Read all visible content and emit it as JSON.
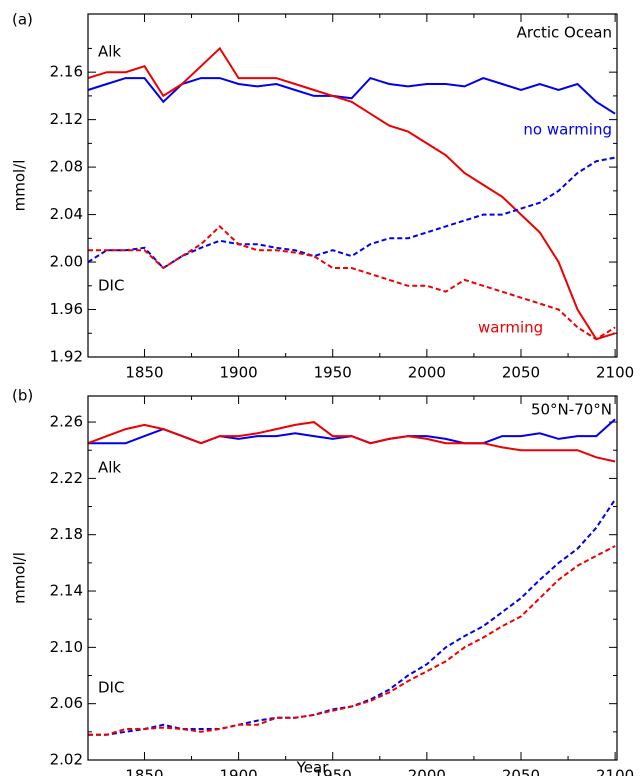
{
  "chart_data": [
    {
      "type": "line",
      "label": "(a)",
      "title": "Arctic Ocean",
      "ylabel": "mmol/l",
      "x": [
        1820,
        1830,
        1840,
        1850,
        1860,
        1870,
        1880,
        1890,
        1900,
        1910,
        1920,
        1930,
        1940,
        1950,
        1960,
        1970,
        1980,
        1990,
        2000,
        2010,
        2020,
        2030,
        2040,
        2050,
        2060,
        2070,
        2080,
        2090,
        2100
      ],
      "xlim": [
        1820,
        2101
      ],
      "ylim": [
        1.92,
        2.209
      ],
      "xticks": [
        1850,
        1900,
        1950,
        2000,
        2050,
        2100
      ],
      "yticks": [
        1.92,
        1.96,
        {
          "value": 2,
          "label": "2.00"
        },
        2.04,
        2.08,
        2.12,
        2.16
      ],
      "series": [
        {
          "color": "#0000ee",
          "dash": false,
          "values": [
            2.145,
            2.15,
            2.155,
            2.155,
            2.135,
            2.15,
            2.155,
            2.155,
            2.15,
            2.148,
            2.15,
            2.145,
            2.14,
            2.14,
            2.138,
            2.155,
            2.15,
            2.148,
            2.15,
            2.15,
            2.148,
            2.155,
            2.15,
            2.145,
            2.15,
            2.145,
            2.15,
            2.135,
            2.125
          ]
        },
        {
          "color": "#ee0000",
          "dash": false,
          "values": [
            2.155,
            2.16,
            2.16,
            2.165,
            2.14,
            2.15,
            2.165,
            2.18,
            2.155,
            2.155,
            2.155,
            2.15,
            2.145,
            2.14,
            2.135,
            2.125,
            2.115,
            2.11,
            2.1,
            2.09,
            2.075,
            2.065,
            2.055,
            2.04,
            2.025,
            2.0,
            1.96,
            1.935,
            1.94
          ]
        },
        {
          "color": "#0000ee",
          "dash": true,
          "values": [
            2.0,
            2.01,
            2.01,
            2.012,
            1.995,
            2.005,
            2.012,
            2.018,
            2.015,
            2.015,
            2.012,
            2.01,
            2.005,
            2.01,
            2.005,
            2.015,
            2.02,
            2.02,
            2.025,
            2.03,
            2.035,
            2.04,
            2.04,
            2.045,
            2.05,
            2.06,
            2.075,
            2.085,
            2.088
          ]
        },
        {
          "color": "#ee0000",
          "dash": true,
          "values": [
            2.01,
            2.01,
            2.01,
            2.01,
            1.995,
            2.005,
            2.015,
            2.03,
            2.015,
            2.01,
            2.01,
            2.008,
            2.005,
            1.995,
            1.995,
            1.99,
            1.985,
            1.98,
            1.98,
            1.975,
            1.985,
            1.98,
            1.975,
            1.97,
            1.965,
            1.96,
            1.945,
            1.935,
            1.945
          ]
        }
      ],
      "annotations": [
        {
          "text": "Alk",
          "color": "#000000"
        },
        {
          "text": "DIC",
          "color": "#000000"
        },
        {
          "text": "no warming",
          "color": "#0000ee"
        },
        {
          "text": "warming",
          "color": "#ee0000"
        }
      ]
    },
    {
      "type": "line",
      "label": "(b)",
      "title": "50°N-70°N",
      "ylabel": "mmol/l",
      "xlabel": "Year",
      "x": [
        1820,
        1830,
        1840,
        1850,
        1860,
        1870,
        1880,
        1890,
        1900,
        1910,
        1920,
        1930,
        1940,
        1950,
        1960,
        1970,
        1980,
        1990,
        2000,
        2010,
        2020,
        2030,
        2040,
        2050,
        2060,
        2070,
        2080,
        2090,
        2100
      ],
      "xlim": [
        1820,
        2101
      ],
      "ylim": [
        2.02,
        2.2785
      ],
      "xticks": [
        1850,
        1900,
        1950,
        2000,
        2050,
        2100
      ],
      "yticks": [
        2.02,
        2.06,
        {
          "value": 2.1,
          "label": "2.10"
        },
        2.14,
        2.18,
        2.22,
        2.26
      ],
      "series": [
        {
          "color": "#0000ee",
          "dash": false,
          "values": [
            2.245,
            2.245,
            2.245,
            2.25,
            2.255,
            2.25,
            2.245,
            2.25,
            2.248,
            2.25,
            2.25,
            2.252,
            2.25,
            2.248,
            2.25,
            2.245,
            2.248,
            2.25,
            2.25,
            2.248,
            2.245,
            2.245,
            2.25,
            2.25,
            2.252,
            2.248,
            2.25,
            2.25,
            2.262
          ]
        },
        {
          "color": "#ee0000",
          "dash": false,
          "values": [
            2.245,
            2.25,
            2.255,
            2.258,
            2.255,
            2.25,
            2.245,
            2.25,
            2.25,
            2.252,
            2.255,
            2.258,
            2.26,
            2.25,
            2.25,
            2.245,
            2.248,
            2.25,
            2.248,
            2.245,
            2.245,
            2.245,
            2.242,
            2.24,
            2.24,
            2.24,
            2.24,
            2.235,
            2.232
          ]
        },
        {
          "color": "#0000ee",
          "dash": true,
          "values": [
            2.038,
            2.038,
            2.04,
            2.042,
            2.045,
            2.042,
            2.042,
            2.042,
            2.045,
            2.048,
            2.05,
            2.05,
            2.052,
            2.056,
            2.058,
            2.063,
            2.07,
            2.08,
            2.088,
            2.1,
            2.108,
            2.115,
            2.125,
            2.135,
            2.148,
            2.16,
            2.17,
            2.185,
            2.205
          ]
        },
        {
          "color": "#ee0000",
          "dash": true,
          "values": [
            2.038,
            2.038,
            2.042,
            2.042,
            2.043,
            2.042,
            2.04,
            2.042,
            2.045,
            2.045,
            2.05,
            2.05,
            2.052,
            2.055,
            2.058,
            2.062,
            2.068,
            2.076,
            2.083,
            2.09,
            2.1,
            2.107,
            2.115,
            2.122,
            2.135,
            2.148,
            2.158,
            2.165,
            2.172
          ]
        }
      ],
      "annotations": [
        {
          "text": "Alk",
          "color": "#000000"
        },
        {
          "text": "DIC",
          "color": "#000000"
        }
      ]
    }
  ]
}
